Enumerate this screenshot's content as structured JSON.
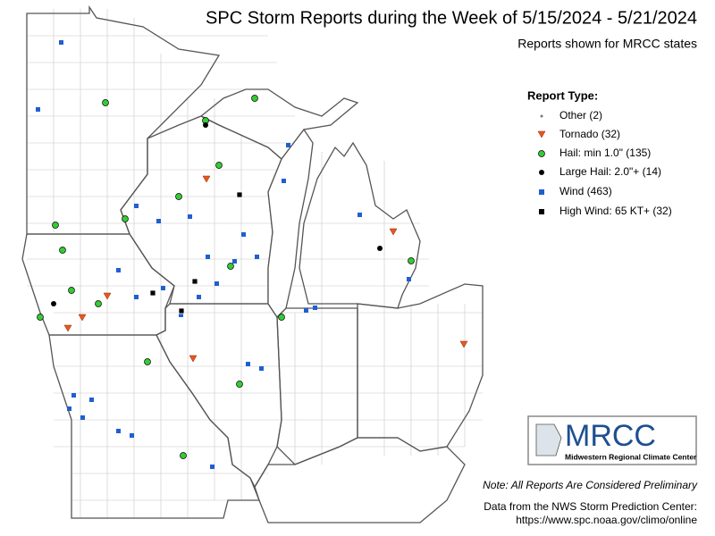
{
  "header": {
    "title": "SPC Storm Reports during the Week of 5/15/2024 - 5/21/2024",
    "subtitle": "Reports shown for MRCC states"
  },
  "legend": {
    "title": "Report Type:",
    "items": [
      "Other (2)",
      "Tornado (32)",
      "Hail: min 1.0\" (135)",
      "Large Hail: 2.0\"+ (14)",
      "Wind (463)",
      "High Wind: 65 KT+ (32)"
    ]
  },
  "logo": {
    "name": "MRCC",
    "full_name": "Midwestern Regional Climate Center"
  },
  "note": "Note: All Reports Are Considered Preliminary",
  "source": {
    "line1": "Data from the NWS Storm Prediction Center:",
    "line2": "https://www.spc.noaa.gov/climo/online"
  }
}
